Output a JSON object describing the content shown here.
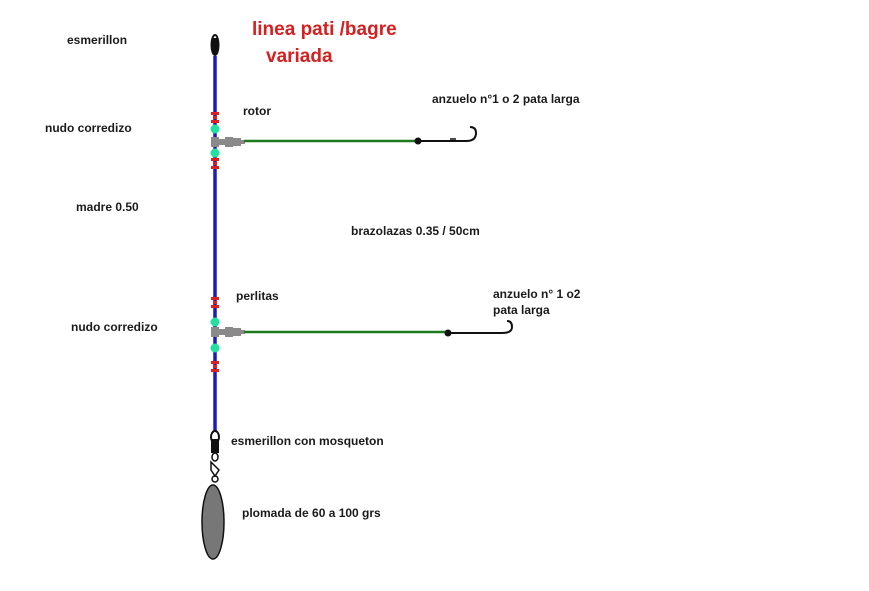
{
  "title": {
    "line1": "linea pati /bagre",
    "line2": "variada"
  },
  "labels": {
    "esmerillon": "esmerillon",
    "rotor": "rotor",
    "anzuelo_top": "anzuelo n°1  o 2 pata larga",
    "nudo_top": "nudo corredizo",
    "madre": "madre 0.50",
    "brazolazas": "brazolazas 0.35 / 50cm",
    "perlitas": "perlitas",
    "anzuelo_bottom_1": "anzuelo n° 1 o2",
    "anzuelo_bottom_2": "pata larga",
    "nudo_bottom": "nudo corredizo",
    "mosqueton": "esmerillon con mosqueton",
    "plomada": "plomada de 60 a 100 grs"
  },
  "colors": {
    "title": "#d42020",
    "main_line": "#1c1cb4",
    "branch_line": "#1e7a1e",
    "knot": "#e02020",
    "bead": "#22e0a0",
    "swivel": "#8a8a8a",
    "hook": "#111111",
    "sinker": "#777777"
  }
}
